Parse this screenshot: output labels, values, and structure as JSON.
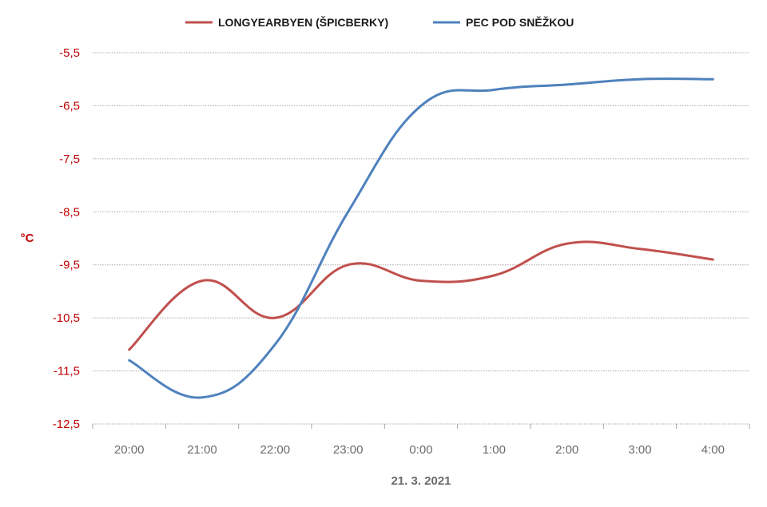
{
  "chart_data": {
    "type": "line",
    "categories": [
      "20:00",
      "21:00",
      "22:00",
      "23:00",
      "0:00",
      "1:00",
      "2:00",
      "3:00",
      "4:00"
    ],
    "series": [
      {
        "name": "LONGYEARBYEN (ŠPICBERKY)",
        "color": "#c0504d",
        "values": [
          -11.1,
          -9.8,
          -10.5,
          -9.5,
          -9.8,
          -9.7,
          -9.1,
          -9.2,
          -9.4
        ]
      },
      {
        "name": "PEC POD SNĚŽKOU",
        "color": "#4f81bd",
        "values": [
          -11.3,
          -12.0,
          -11.0,
          -8.5,
          -6.5,
          -6.2,
          -6.1,
          -6.0,
          -6.0
        ]
      }
    ],
    "ylabel": "°C",
    "xlabel": "21. 3. 2021",
    "ylim": [
      -12.5,
      -5.5
    ],
    "yticks": [
      "-5,5",
      "-6,5",
      "-7,5",
      "-8,5",
      "-9,5",
      "-10,5",
      "-11,5",
      "-12,5"
    ],
    "grid": true,
    "legend_position": "top",
    "axis_text_color": "#c00000",
    "xtick_color": "#6b6b6b"
  }
}
